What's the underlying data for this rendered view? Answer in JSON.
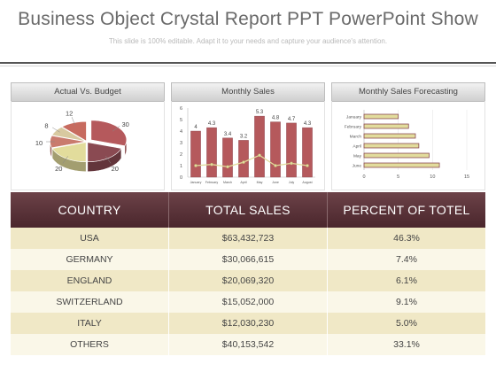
{
  "header": {
    "title": "Business Object Crystal Report PPT PowerPoint Show",
    "subtitle": "This slide is 100% editable. Adapt it to your needs and capture your audience's attention."
  },
  "panels": {
    "pie_title": "Actual Vs. Budget",
    "bar_title": "Monthly Sales",
    "hbar_title": "Monthly Sales Forecasting"
  },
  "chart_data": [
    {
      "type": "pie",
      "title": "Actual Vs. Budget",
      "values": [
        30,
        20,
        20,
        10,
        8,
        12
      ],
      "labels": [
        "30",
        "20",
        "20",
        "10",
        "8",
        "12"
      ],
      "colors": [
        "#b5595c",
        "#8a4a52",
        "#e2dc9c",
        "#c97b6e",
        "#d8c9a0",
        "#c76b5f"
      ]
    },
    {
      "type": "bar",
      "title": "Monthly Sales",
      "categories": [
        "January",
        "February",
        "March",
        "April",
        "May",
        "June",
        "July",
        "August"
      ],
      "values": [
        4,
        4.3,
        3.4,
        3.2,
        5.3,
        4.8,
        4.7,
        4.3
      ],
      "line_values": [
        1.0,
        1.1,
        0.9,
        1.3,
        1.9,
        1.0,
        1.2,
        1.0
      ],
      "ylim": [
        0,
        6
      ],
      "yticks": [
        0,
        1,
        2,
        3,
        4,
        5,
        6
      ],
      "bar_color": "#b5595c",
      "line_color": "#e2dc9c"
    },
    {
      "type": "bar",
      "orientation": "horizontal",
      "title": "Monthly Sales Forecasting",
      "categories": [
        "January",
        "February",
        "March",
        "April",
        "May",
        "June"
      ],
      "values": [
        5,
        6.5,
        7.5,
        8,
        9.5,
        11
      ],
      "xlim": [
        0,
        15
      ],
      "xticks": [
        0,
        5,
        10,
        15
      ],
      "bar_color": "#e2dc9c",
      "bar_edge": "#8a4a52"
    }
  ],
  "table": {
    "headers": [
      "COUNTRY",
      "TOTAL SALES",
      "PERCENT OF TOTEL"
    ],
    "rows": [
      [
        "USA",
        "$63,432,723",
        "46.3%"
      ],
      [
        "GERMANY",
        "$30,066,615",
        "7.4%"
      ],
      [
        "ENGLAND",
        "$20,069,320",
        "6.1%"
      ],
      [
        "SWITZERLAND",
        "$15,052,000",
        "9.1%"
      ],
      [
        "ITALY",
        "$12,030,230",
        "5.0%"
      ],
      [
        "OTHERS",
        "$40,153,542",
        "33.1%"
      ]
    ]
  }
}
